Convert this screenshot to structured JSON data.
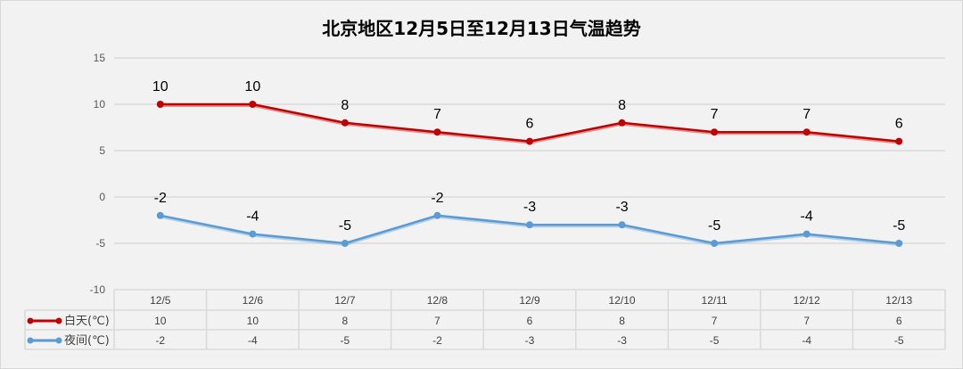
{
  "chart_data": {
    "type": "line",
    "title": "北京地区12月5日至12月13日气温趋势",
    "categories": [
      "12/5",
      "12/6",
      "12/7",
      "12/8",
      "12/9",
      "12/10",
      "12/11",
      "12/12",
      "12/13"
    ],
    "series": [
      {
        "name": "白天(℃)",
        "color": "#c00000",
        "values": [
          10,
          10,
          8,
          7,
          6,
          8,
          7,
          7,
          6
        ]
      },
      {
        "name": "夜间(℃)",
        "color": "#5b9bd5",
        "values": [
          -2,
          -4,
          -5,
          -2,
          -3,
          -3,
          -5,
          -4,
          -5
        ]
      }
    ],
    "ylim": [
      -10,
      15
    ],
    "yticks": [
      -10,
      -5,
      0,
      5,
      10,
      15
    ],
    "grid": true,
    "data_labels": true,
    "legend": "data-table"
  }
}
